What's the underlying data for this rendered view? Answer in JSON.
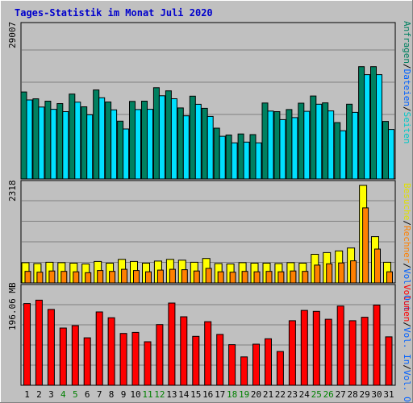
{
  "chart_data": {
    "type": "bar",
    "title": "Tages-Statistik im Monat Juli 2020",
    "categories": [
      "1",
      "2",
      "3",
      "4",
      "5",
      "6",
      "7",
      "8",
      "9",
      "10",
      "11",
      "12",
      "13",
      "14",
      "15",
      "16",
      "17",
      "18",
      "19",
      "20",
      "21",
      "22",
      "23",
      "24",
      "25",
      "26",
      "27",
      "28",
      "29",
      "30",
      "31"
    ],
    "weekend_days": [
      4,
      5,
      11,
      12,
      18,
      19,
      25,
      26
    ],
    "colors": {
      "background": "#c0c0c0",
      "title": "#0000cc",
      "anfragen": "#008060",
      "dateien": "#00e0ff",
      "seiten": "#00c8c8",
      "besuche": "#ffff00",
      "rechner": "#ff8000",
      "volumen": "#ff0000",
      "weekend_label": "#008000",
      "grid": "#808080"
    },
    "panels": [
      {
        "scale_label": "29007",
        "ymax": 29007,
        "legend_right": [
          {
            "text": "Anfragen",
            "color": "#008060"
          },
          {
            "text": "/",
            "color": "#000000"
          },
          {
            "text": "Dateien",
            "color": "#0060ff"
          },
          {
            "text": "/",
            "color": "#000000"
          },
          {
            "text": "Seiten",
            "color": "#00c8c8"
          }
        ],
        "series": [
          {
            "name": "Anfragen",
            "values": [
              16650,
              15330,
              14890,
              14420,
              16250,
              13810,
              17040,
              14740,
              11070,
              14840,
              14890,
              17470,
              16860,
              13600,
              15840,
              13510,
              9720,
              8410,
              8610,
              8480,
              14540,
              12880,
              13290,
              14500,
              15880,
              14560,
              10780,
              14300,
              21490,
              21490,
              11020
            ]
          },
          {
            "name": "Dateien",
            "values": [
              15890,
              14540,
              14100,
              13650,
              15480,
              13060,
              16310,
              14000,
              10330,
              14050,
              14100,
              16690,
              16120,
              12850,
              15060,
              12750,
              8940,
              7680,
              7830,
              7690,
              13760,
              12120,
              12520,
              13720,
              15080,
              13790,
              10000,
              13510,
              20730,
              20730,
              10250
            ]
          }
        ]
      },
      {
        "scale_label": "2318",
        "ymax": 2318,
        "legend_right": [
          {
            "text": "Besuche",
            "color": "#e0e000"
          },
          {
            "text": "/",
            "color": "#000000"
          },
          {
            "text": "Rechner",
            "color": "#ff8000"
          },
          {
            "text": "/",
            "color": "#000000"
          },
          {
            "text": "Vol. Out",
            "color": "#0060ff"
          }
        ],
        "series": [
          {
            "name": "Besuche",
            "values": [
              480,
              460,
              490,
              480,
              470,
              450,
              510,
              470,
              560,
              510,
              470,
              520,
              560,
              540,
              490,
              580,
              460,
              450,
              480,
              470,
              470,
              460,
              480,
              470,
              680,
              720,
              760,
              830,
              2318,
              1100,
              490
            ]
          },
          {
            "name": "Rechner",
            "values": [
              370,
              350,
              380,
              370,
              360,
              340,
              390,
              370,
              420,
              390,
              360,
              400,
              420,
              410,
              380,
              440,
              360,
              350,
              370,
              360,
              370,
              360,
              380,
              370,
              520,
              550,
              570,
              620,
              1880,
              900,
              360
            ]
          }
        ]
      },
      {
        "scale_label": "196.06 MB",
        "ymax": 196.06,
        "legend_right": [
          {
            "text": "Volumen",
            "color": "#ff0000"
          },
          {
            "text": "/",
            "color": "#000000"
          },
          {
            "text": "Vol. In",
            "color": "#0060ff"
          },
          {
            "text": "/",
            "color": "#000000"
          },
          {
            "text": "Vol. Out",
            "color": "#0060ff"
          }
        ],
        "series": [
          {
            "name": "Volumen",
            "values": [
              167,
              174,
              155,
              117,
              122,
              97,
              150,
              138,
              106,
              108,
              89,
              124,
              168,
              140,
              100,
              130,
              104,
              83,
              58,
              84,
              95,
              69,
              132,
              153,
              151,
              135,
              162,
              132,
              139,
              164,
              99
            ]
          }
        ]
      }
    ]
  }
}
